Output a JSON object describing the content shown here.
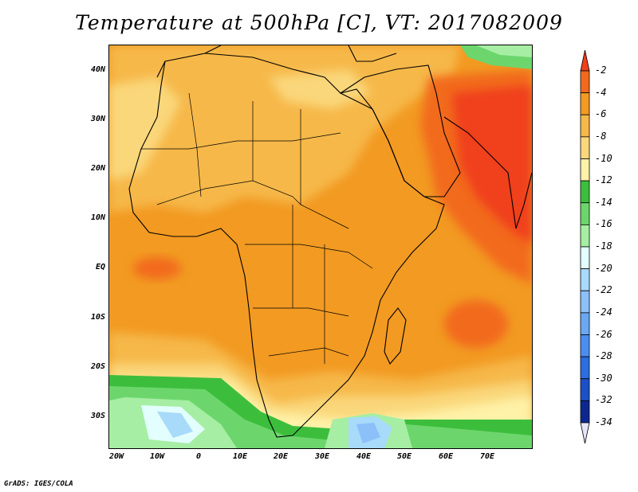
{
  "title": "Temperature at 500hPa [C], VT: 2017082009",
  "credit": "GrADS: IGES/COLA",
  "lat_labels": [
    "40N",
    "30N",
    "20N",
    "10N",
    "EQ",
    "10S",
    "20S",
    "30S"
  ],
  "lon_labels": [
    "20W",
    "10W",
    "0",
    "10E",
    "20E",
    "30E",
    "40E",
    "50E",
    "60E",
    "70E"
  ],
  "colorbar": {
    "labels": [
      "-2",
      "-4",
      "-6",
      "-8",
      "-10",
      "-12",
      "-14",
      "-16",
      "-18",
      "-20",
      "-22",
      "-24",
      "-26",
      "-28",
      "-30",
      "-32",
      "-34"
    ],
    "colors": [
      "#f0401c",
      "#f26a1e",
      "#f29a22",
      "#f6b84a",
      "#fad77a",
      "#fef2a8",
      "#3cbe3c",
      "#6cd66c",
      "#a6eea4",
      "#e2fefe",
      "#a8dafa",
      "#8cc0f8",
      "#6aa8f2",
      "#4c8ef0",
      "#2c6ee0",
      "#1c50c6",
      "#0c2890",
      "#0a0a60"
    ]
  },
  "map": {
    "region": "Africa",
    "lon_range": [
      -22,
      80
    ],
    "lat_range": [
      -37,
      45
    ]
  }
}
